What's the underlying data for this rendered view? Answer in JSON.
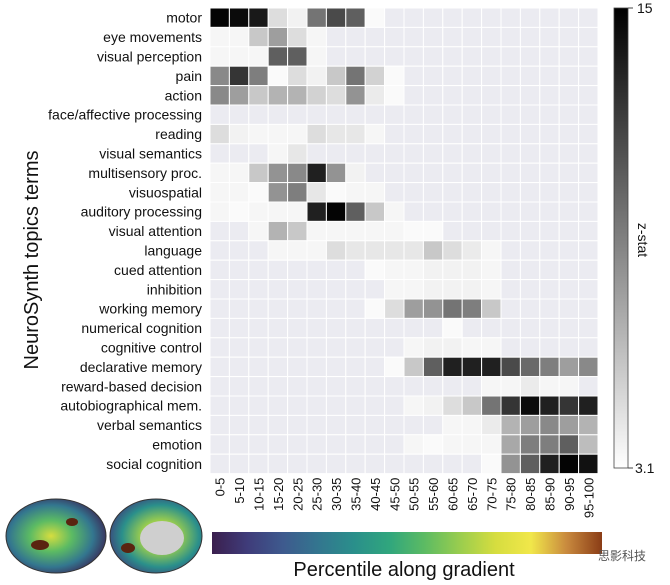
{
  "chart_data": {
    "type": "heatmap",
    "ylabel": "NeuroSynth topics terms",
    "xlabel": "Percentile along gradient",
    "colorbar": {
      "label": "z-stat",
      "min": 3.1,
      "max": 15,
      "min_label": "3.1",
      "max_label": "15"
    },
    "rows": [
      "motor",
      "eye movements",
      "visual perception",
      "pain",
      "action",
      "face/affective processing",
      "reading",
      "visual semantics",
      "multisensory proc.",
      "visuospatial",
      "auditory processing",
      "visual attention",
      "language",
      "cued attention",
      "inhibition",
      "working memory",
      "numerical cognition",
      "cognitive control",
      "declarative memory",
      "reward-based decision",
      "autobiographical mem.",
      "verbal semantics",
      "emotion",
      "social cognition"
    ],
    "columns": [
      "0-5",
      "5-10",
      "10-15",
      "15-20",
      "20-25",
      "25-30",
      "30-35",
      "35-40",
      "40-45",
      "45-50",
      "50-55",
      "55-60",
      "60-65",
      "65-70",
      "70-75",
      "75-80",
      "80-85",
      "85-90",
      "90-95",
      "95-100"
    ],
    "values": [
      [
        14.8,
        14.5,
        13.8,
        4.5,
        3.5,
        9.5,
        11.5,
        10.5,
        3.1,
        0,
        0,
        0,
        0,
        0,
        0,
        0,
        0,
        0,
        0,
        0
      ],
      [
        3.3,
        3.3,
        5.5,
        7.5,
        4.5,
        3.3,
        0,
        0,
        0,
        0,
        0,
        0,
        0,
        0,
        0,
        0,
        0,
        0,
        0,
        0
      ],
      [
        3.3,
        3.3,
        3.3,
        10.5,
        10.5,
        3.3,
        0,
        0,
        0,
        0,
        0,
        0,
        0,
        0,
        0,
        0,
        0,
        0,
        0,
        0
      ],
      [
        8.5,
        12.5,
        9.0,
        3.1,
        4.5,
        3.5,
        5.5,
        9.5,
        5.0,
        3.1,
        0,
        0,
        0,
        0,
        0,
        0,
        0,
        0,
        0,
        0
      ],
      [
        8.5,
        7.5,
        5.5,
        6.5,
        6.5,
        5.0,
        4.5,
        8.0,
        3.8,
        3.1,
        0,
        0,
        0,
        0,
        0,
        0,
        0,
        0,
        0,
        0
      ],
      [
        0,
        0,
        0,
        0,
        0,
        0,
        0,
        0,
        0,
        0,
        0,
        0,
        0,
        0,
        0,
        0,
        0,
        0,
        0,
        0
      ],
      [
        4.5,
        3.5,
        3.3,
        3.3,
        3.3,
        4.5,
        4.0,
        4.0,
        3.3,
        0,
        0,
        0,
        0,
        0,
        0,
        0,
        0,
        0,
        0,
        0
      ],
      [
        0,
        0,
        0,
        3.3,
        4.0,
        0,
        0,
        0,
        0,
        0,
        0,
        0,
        0,
        0,
        0,
        0,
        0,
        0,
        0,
        0
      ],
      [
        3.3,
        3.3,
        5.5,
        8.0,
        8.5,
        13.5,
        8.0,
        3.5,
        0,
        0,
        0,
        0,
        0,
        0,
        0,
        0,
        0,
        0,
        0,
        0
      ],
      [
        3.3,
        3.3,
        3.1,
        8.0,
        9.0,
        4.0,
        3.1,
        3.3,
        3.3,
        0,
        0,
        0,
        0,
        0,
        0,
        0,
        0,
        0,
        0,
        0
      ],
      [
        3.3,
        3.1,
        3.3,
        3.3,
        3.3,
        13.5,
        14.8,
        10.5,
        5.5,
        3.3,
        0,
        0,
        0,
        0,
        0,
        0,
        0,
        0,
        0,
        0
      ],
      [
        0,
        0,
        3.3,
        6.5,
        5.5,
        3.3,
        3.3,
        3.3,
        3.3,
        3.3,
        3.1,
        3.1,
        0,
        0,
        0,
        0,
        0,
        0,
        0,
        0
      ],
      [
        0,
        0,
        0,
        3.3,
        3.3,
        3.3,
        4.5,
        4.0,
        4.0,
        4.0,
        4.0,
        5.5,
        4.5,
        3.8,
        3.3,
        0,
        0,
        0,
        0,
        0
      ],
      [
        0,
        0,
        0,
        0,
        0,
        0,
        0,
        0,
        3.1,
        3.3,
        3.3,
        3.5,
        3.5,
        3.5,
        3.3,
        0,
        0,
        0,
        0,
        0
      ],
      [
        0,
        0,
        0,
        0,
        0,
        0,
        0,
        0,
        0,
        3.3,
        3.3,
        3.5,
        3.5,
        3.5,
        3.3,
        0,
        0,
        0,
        0,
        0
      ],
      [
        0,
        0,
        0,
        0,
        0,
        0,
        0,
        0,
        3.1,
        4.5,
        7.5,
        8.0,
        9.5,
        9.0,
        5.5,
        0,
        0,
        0,
        0,
        0
      ],
      [
        0,
        0,
        0,
        0,
        0,
        0,
        0,
        0,
        0,
        0,
        0,
        0,
        3.1,
        0,
        0,
        0,
        0,
        0,
        0,
        0
      ],
      [
        0,
        0,
        0,
        0,
        0,
        0,
        0,
        0,
        0,
        0,
        3.3,
        3.5,
        3.5,
        3.3,
        3.3,
        0,
        0,
        0,
        0,
        0
      ],
      [
        0,
        0,
        0,
        0,
        0,
        0,
        0,
        0,
        0,
        3.1,
        5.5,
        10.5,
        13.5,
        13.5,
        13.5,
        11.5,
        10.0,
        9.0,
        7.5,
        8.5
      ],
      [
        0,
        0,
        0,
        0,
        0,
        0,
        0,
        0,
        0,
        0,
        0,
        0,
        0,
        0,
        3.3,
        3.3,
        3.8,
        3.3,
        3.3,
        0
      ],
      [
        0,
        0,
        0,
        0,
        0,
        0,
        0,
        0,
        0,
        0,
        3.3,
        3.5,
        4.5,
        5.5,
        9.5,
        12.5,
        14.5,
        13.5,
        12.5,
        13.5
      ],
      [
        0,
        0,
        0,
        0,
        0,
        0,
        0,
        0,
        0,
        0,
        0,
        0,
        3.3,
        3.3,
        3.8,
        6.5,
        7.5,
        8.5,
        7.5,
        6.5
      ],
      [
        0,
        0,
        0,
        0,
        0,
        0,
        0,
        0,
        0,
        0,
        3.3,
        3.1,
        3.3,
        3.3,
        3.3,
        7.0,
        9.0,
        9.0,
        10.5,
        6.0
      ],
      [
        0,
        0,
        0,
        0,
        0,
        0,
        0,
        0,
        0,
        0,
        0,
        0,
        0,
        0,
        3.1,
        8.0,
        10.5,
        13.5,
        14.8,
        14.2
      ]
    ],
    "gradient_colormap": [
      "#3b1f4e",
      "#3f3c7a",
      "#3e5a8e",
      "#33768f",
      "#2a8f8b",
      "#30a67d",
      "#5cbb63",
      "#9acd4e",
      "#d6dd3f",
      "#f1e74a",
      "#c98a3e",
      "#8a3c16"
    ],
    "watermark": "思影科技"
  }
}
